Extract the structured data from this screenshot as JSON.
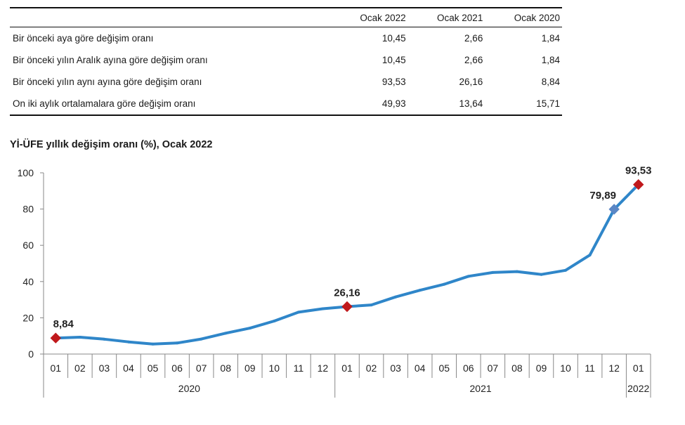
{
  "table": {
    "columns": [
      "",
      "Ocak 2022",
      "Ocak 2021",
      "Ocak 2020"
    ],
    "rows": [
      {
        "label": "Bir önceki aya göre değişim oranı",
        "values": [
          "10,45",
          "2,66",
          "1,84"
        ]
      },
      {
        "label": "Bir önceki yılın Aralık ayına göre değişim oranı",
        "values": [
          "10,45",
          "2,66",
          "1,84"
        ]
      },
      {
        "label": "Bir önceki yılın aynı ayına göre değişim oranı",
        "values": [
          "93,53",
          "26,16",
          "8,84"
        ]
      },
      {
        "label": "On iki aylık ortalamalara göre değişim oranı",
        "values": [
          "49,93",
          "13,64",
          "15,71"
        ]
      }
    ]
  },
  "chart_data": {
    "type": "line",
    "title": "Yİ-ÜFE yıllık değişim oranı (%), Ocak 2022",
    "months": [
      "01",
      "02",
      "03",
      "04",
      "05",
      "06",
      "07",
      "08",
      "09",
      "10",
      "11",
      "12",
      "01",
      "02",
      "03",
      "04",
      "05",
      "06",
      "07",
      "08",
      "09",
      "10",
      "11",
      "12",
      "01"
    ],
    "years": [
      {
        "label": "2020",
        "count": 12
      },
      {
        "label": "2021",
        "count": 12
      },
      {
        "label": "2022",
        "count": 1
      }
    ],
    "values": [
      8.84,
      9.3,
      8.2,
      6.7,
      5.5,
      6.1,
      8.3,
      11.5,
      14.3,
      18.2,
      23.1,
      25.0,
      26.16,
      27.1,
      31.5,
      35.2,
      38.5,
      42.9,
      45.0,
      45.5,
      43.9,
      46.2,
      54.6,
      79.89,
      93.53
    ],
    "ylim": [
      0,
      100
    ],
    "yticks": [
      0,
      20,
      40,
      60,
      80,
      100
    ],
    "annotations": [
      {
        "index": 0,
        "label": "8,84",
        "color": "#c0191c"
      },
      {
        "index": 12,
        "label": "26,16",
        "color": "#c0191c"
      },
      {
        "index": 23,
        "label": "79,89",
        "color": "#5b87c5"
      },
      {
        "index": 24,
        "label": "93,53",
        "color": "#c0191c"
      }
    ],
    "line_color": "#2f86c9",
    "grid": false,
    "legend": "none"
  }
}
